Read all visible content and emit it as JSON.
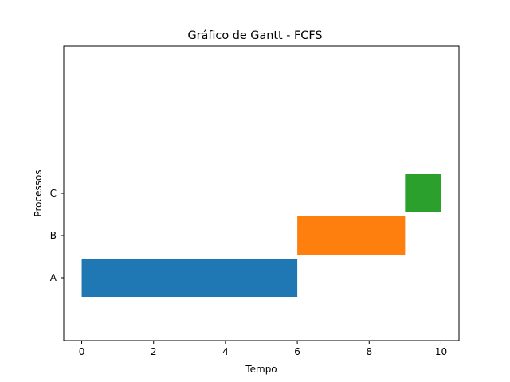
{
  "chart_data": {
    "type": "gantt",
    "title": "Gráfico de Gantt - FCFS",
    "xlabel": "Tempo",
    "ylabel": "Processos",
    "xlim": [
      -0.5,
      10.5
    ],
    "xticks": [
      0,
      2,
      4,
      6,
      8,
      10
    ],
    "grid": false,
    "tasks": [
      {
        "name": "A",
        "start": 0,
        "end": 6,
        "color": "#1f77b4"
      },
      {
        "name": "B",
        "start": 6,
        "end": 9,
        "color": "#ff7f0e"
      },
      {
        "name": "C",
        "start": 9,
        "end": 10,
        "color": "#2ca02c"
      }
    ]
  }
}
